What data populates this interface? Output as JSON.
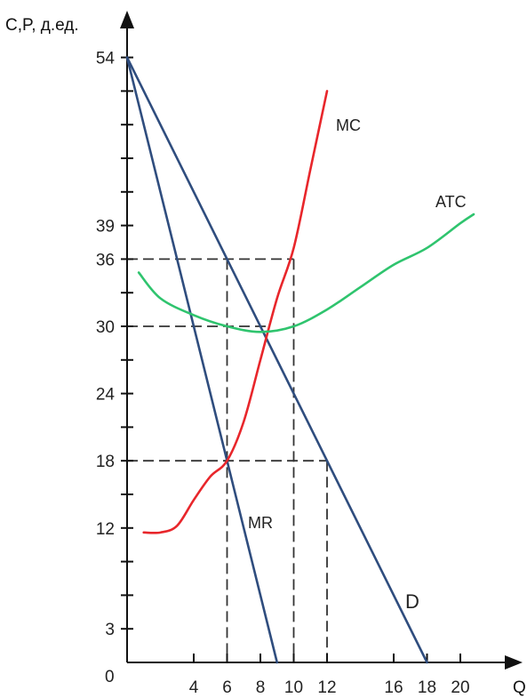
{
  "chart_data": {
    "type": "line",
    "ylabel": "C,P, д.ед.",
    "xlabel": "Q",
    "origin_label": "0",
    "xlim": [
      0,
      22.5
    ],
    "ylim": [
      0,
      57
    ],
    "x_ticks": [
      4,
      6,
      8,
      10,
      12,
      16,
      18,
      20
    ],
    "y_ticks_labeled": [
      3,
      12,
      18,
      24,
      30,
      36,
      39,
      54
    ],
    "y_ticks_minor": [
      6,
      9,
      15,
      21,
      27,
      33,
      42,
      45,
      48,
      51
    ],
    "series": [
      {
        "name": "D",
        "color": "#2f4d7e",
        "points": [
          [
            0,
            54
          ],
          [
            18,
            0
          ]
        ]
      },
      {
        "name": "MR",
        "color": "#2f4d7e",
        "points": [
          [
            0,
            54
          ],
          [
            9,
            0
          ]
        ]
      },
      {
        "name": "MC",
        "color": "#e8262b",
        "points": [
          [
            1,
            11.6
          ],
          [
            2,
            11.6
          ],
          [
            3,
            12.2
          ],
          [
            4,
            14.5
          ],
          [
            5,
            16.6
          ],
          [
            6,
            18
          ],
          [
            7,
            21.5
          ],
          [
            8,
            27
          ],
          [
            9,
            32.5
          ],
          [
            10,
            37
          ],
          [
            11,
            44
          ],
          [
            12,
            51
          ]
        ]
      },
      {
        "name": "ATC",
        "color": "#2fc46e",
        "points": [
          [
            0.7,
            34.8
          ],
          [
            2,
            32.5
          ],
          [
            4,
            31
          ],
          [
            6,
            30
          ],
          [
            8,
            29.5
          ],
          [
            10,
            30
          ],
          [
            12,
            31.5
          ],
          [
            14,
            33.5
          ],
          [
            16,
            35.5
          ],
          [
            18,
            37
          ],
          [
            20,
            39.2
          ],
          [
            20.8,
            40
          ]
        ]
      }
    ],
    "reference_lines": [
      {
        "from": [
          0,
          36
        ],
        "to": [
          10,
          36
        ]
      },
      {
        "from": [
          10,
          36
        ],
        "to": [
          10,
          0
        ]
      },
      {
        "from": [
          6,
          36
        ],
        "to": [
          6,
          0
        ]
      },
      {
        "from": [
          0,
          30
        ],
        "to": [
          8.5,
          30
        ]
      },
      {
        "from": [
          0,
          18
        ],
        "to": [
          12,
          18
        ]
      },
      {
        "from": [
          12,
          18
        ],
        "to": [
          12,
          0
        ]
      }
    ]
  }
}
